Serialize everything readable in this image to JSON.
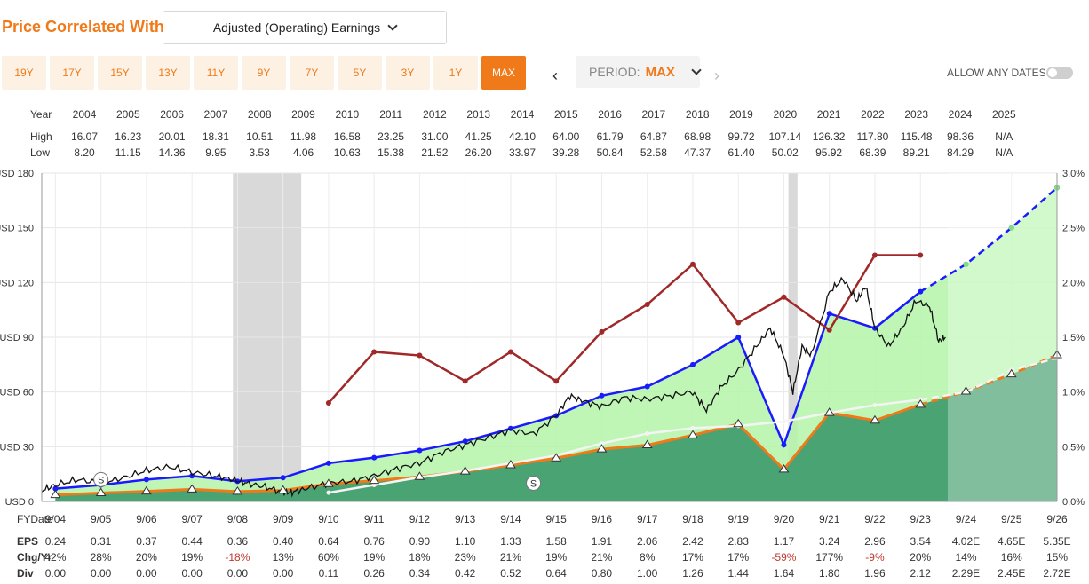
{
  "header": {
    "title": "Price Correlated With",
    "metric_selected": "Adjusted (Operating) Earnings",
    "range_buttons": [
      "19Y",
      "17Y",
      "15Y",
      "13Y",
      "11Y",
      "9Y",
      "7Y",
      "5Y",
      "3Y",
      "1Y",
      "MAX"
    ],
    "active_range": "MAX",
    "period_label": "PERIOD:",
    "period_value": "MAX",
    "allow_any_dates_label": "ALLOW ANY DATES",
    "allow_any_dates_on": false
  },
  "high_low": {
    "year_label": "Year",
    "high_label": "High",
    "low_label": "Low",
    "years": [
      "2004",
      "2005",
      "2006",
      "2007",
      "2008",
      "2009",
      "2010",
      "2011",
      "2012",
      "2013",
      "2014",
      "2015",
      "2016",
      "2017",
      "2018",
      "2019",
      "2020",
      "2021",
      "2022",
      "2023",
      "2024",
      "2025"
    ],
    "high": [
      "16.07",
      "16.23",
      "20.01",
      "18.31",
      "10.51",
      "11.98",
      "16.58",
      "23.25",
      "31.00",
      "41.25",
      "42.10",
      "64.00",
      "61.79",
      "64.87",
      "68.98",
      "99.72",
      "107.14",
      "126.32",
      "117.80",
      "115.48",
      "98.36",
      "N/A"
    ],
    "low": [
      "8.20",
      "11.15",
      "14.36",
      "9.95",
      "3.53",
      "4.06",
      "10.63",
      "15.38",
      "21.52",
      "26.20",
      "33.97",
      "39.28",
      "50.84",
      "52.58",
      "47.37",
      "61.40",
      "50.02",
      "95.92",
      "68.39",
      "89.21",
      "84.29",
      "N/A"
    ]
  },
  "table": {
    "fy_label": "FYDate",
    "eps_label": "EPS",
    "chg_label": "Chg/Yr",
    "div_label": "Div",
    "fy": [
      "9/04",
      "9/05",
      "9/06",
      "9/07",
      "9/08",
      "9/09",
      "9/10",
      "9/11",
      "9/12",
      "9/13",
      "9/14",
      "9/15",
      "9/16",
      "9/17",
      "9/18",
      "9/19",
      "9/20",
      "9/21",
      "9/22",
      "9/23",
      "9/24",
      "9/25",
      "9/26"
    ],
    "eps": [
      "0.24",
      "0.31",
      "0.37",
      "0.44",
      "0.36",
      "0.40",
      "0.64",
      "0.76",
      "0.90",
      "1.10",
      "1.33",
      "1.58",
      "1.91",
      "2.06",
      "2.42",
      "2.83",
      "1.17",
      "3.24",
      "2.96",
      "3.54",
      "4.02E",
      "4.65E",
      "5.35E"
    ],
    "chg": [
      "42%",
      "28%",
      "20%",
      "19%",
      "-18%",
      "13%",
      "60%",
      "19%",
      "18%",
      "23%",
      "21%",
      "19%",
      "21%",
      "8%",
      "17%",
      "17%",
      "-59%",
      "177%",
      "-9%",
      "20%",
      "14%",
      "16%",
      "15%"
    ],
    "div": [
      "0.00",
      "0.00",
      "0.00",
      "0.00",
      "0.00",
      "0.00",
      "0.11",
      "0.26",
      "0.34",
      "0.42",
      "0.52",
      "0.64",
      "0.80",
      "1.00",
      "1.26",
      "1.44",
      "1.64",
      "1.80",
      "1.96",
      "2.12",
      "2.29E",
      "2.45E",
      "2.72E"
    ]
  },
  "chart_data": {
    "type": "line",
    "title": "Price Correlated With Adjusted (Operating) Earnings",
    "x_range": [
      2003.7,
      2026.0
    ],
    "ylim_left": [
      0,
      180
    ],
    "ylim_right": [
      0,
      3.0
    ],
    "left_ticks": [
      "USD 0",
      "USD 30",
      "USD 60",
      "USD 90",
      "USD 120",
      "USD 150",
      "USD 180"
    ],
    "right_ticks": [
      "0.0%",
      "0.5%",
      "1.0%",
      "1.5%",
      "2.0%",
      "2.5%",
      "3.0%"
    ],
    "recessions": [
      [
        2007.9,
        2009.4
      ],
      [
        2020.1,
        2020.3
      ]
    ],
    "estimate_start": 2023.6,
    "eps_x": [
      2004.0,
      2005.0,
      2006.0,
      2007.0,
      2008.0,
      2009.0,
      2010.0,
      2011.0,
      2012.0,
      2013.0,
      2014.0,
      2015.0,
      2016.0,
      2017.0,
      2018.0,
      2019.0,
      2020.0,
      2021.0,
      2022.0,
      2023.0,
      2024.0,
      2025.0,
      2026.0
    ],
    "eps_line_values": [
      3.6,
      4.65,
      5.55,
      6.6,
      5.4,
      6.0,
      9.6,
      11.4,
      13.5,
      16.5,
      19.95,
      23.7,
      28.65,
      30.9,
      36.3,
      42.45,
      17.55,
      48.6,
      44.4,
      53.1,
      60.3,
      69.75,
      80.25
    ],
    "normal_pe_values": [
      7,
      9,
      12,
      14,
      11,
      13,
      21,
      24,
      28,
      33,
      40,
      47,
      58,
      63,
      75,
      90,
      31,
      103,
      95,
      115,
      130,
      150,
      172
    ],
    "dividend_yield_pct": [
      null,
      null,
      null,
      null,
      null,
      null,
      0.08,
      0.15,
      0.22,
      0.28,
      0.35,
      0.42,
      0.53,
      0.62,
      0.67,
      0.69,
      0.73,
      0.81,
      0.88,
      0.93,
      1.0,
      1.2,
      1.31
    ],
    "payout_line_values": [
      null,
      null,
      null,
      null,
      null,
      null,
      54,
      82,
      80,
      66,
      82,
      66,
      93,
      108,
      130,
      98,
      112,
      94,
      135,
      135,
      null,
      null,
      null
    ],
    "price_points": [
      [
        2003.7,
        6
      ],
      [
        2004.0,
        9
      ],
      [
        2004.5,
        12
      ],
      [
        2005.0,
        10
      ],
      [
        2005.5,
        13
      ],
      [
        2006.0,
        17
      ],
      [
        2006.5,
        19
      ],
      [
        2007.0,
        16
      ],
      [
        2007.5,
        14
      ],
      [
        2007.9,
        12
      ],
      [
        2008.2,
        10
      ],
      [
        2008.6,
        8
      ],
      [
        2009.0,
        5
      ],
      [
        2009.2,
        5
      ],
      [
        2009.5,
        7
      ],
      [
        2010.0,
        10
      ],
      [
        2010.5,
        11
      ],
      [
        2011.0,
        14
      ],
      [
        2011.5,
        18
      ],
      [
        2012.0,
        21
      ],
      [
        2012.5,
        27
      ],
      [
        2013.0,
        31
      ],
      [
        2013.5,
        35
      ],
      [
        2014.0,
        39
      ],
      [
        2014.5,
        37
      ],
      [
        2015.0,
        47
      ],
      [
        2015.3,
        58
      ],
      [
        2015.6,
        55
      ],
      [
        2016.0,
        52
      ],
      [
        2016.5,
        57
      ],
      [
        2017.0,
        56
      ],
      [
        2017.5,
        58
      ],
      [
        2018.0,
        60
      ],
      [
        2018.3,
        50
      ],
      [
        2018.6,
        62
      ],
      [
        2019.0,
        72
      ],
      [
        2019.4,
        85
      ],
      [
        2019.7,
        95
      ],
      [
        2020.0,
        80
      ],
      [
        2020.2,
        60
      ],
      [
        2020.4,
        85
      ],
      [
        2020.6,
        80
      ],
      [
        2021.0,
        115
      ],
      [
        2021.3,
        122
      ],
      [
        2021.6,
        110
      ],
      [
        2021.8,
        118
      ],
      [
        2022.0,
        95
      ],
      [
        2022.3,
        85
      ],
      [
        2022.6,
        95
      ],
      [
        2022.9,
        110
      ],
      [
        2023.2,
        107
      ],
      [
        2023.4,
        88
      ],
      [
        2023.55,
        90
      ]
    ]
  }
}
